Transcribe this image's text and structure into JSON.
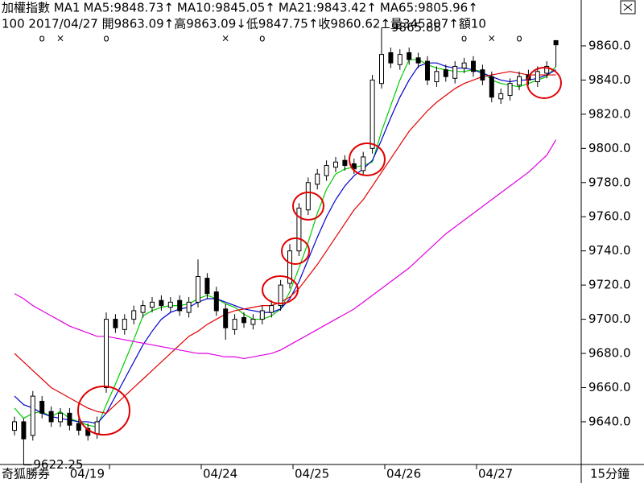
{
  "chart_data": {
    "type": "candlestick",
    "header": [
      {
        "text": "加權指數 MA1",
        "color": "#000000"
      },
      {
        "text": "MA5:9848.73↑",
        "color": "#00bb00"
      },
      {
        "text": "MA10:9845.05↑",
        "color": "#0000ff"
      },
      {
        "text": "MA21:9843.42↑",
        "color": "#ff0000"
      },
      {
        "text": "MA65:9805.96↑",
        "color": "#ee00ee"
      }
    ],
    "info": "100 2017/04/27 開9863.09↑高9863.09↓低9847.75↑收9860.62↑量345307↑額10",
    "brand": "奇狐勝券",
    "interval": "15分鐘",
    "categories": [
      null,
      null,
      null,
      null,
      null,
      null,
      null,
      null,
      null,
      null,
      "04/19",
      null,
      null,
      null,
      null,
      null,
      null,
      null,
      null,
      null,
      "04/24",
      null,
      null,
      null,
      null,
      null,
      null,
      null,
      null,
      null,
      "04/25",
      null,
      null,
      null,
      null,
      null,
      null,
      null,
      null,
      null,
      "04/26",
      null,
      null,
      null,
      null,
      null,
      null,
      null,
      null,
      null,
      "04/27",
      null,
      null,
      null,
      null,
      null,
      null,
      null,
      null,
      null
    ],
    "signals": [
      null,
      null,
      null,
      "o",
      null,
      "×",
      null,
      null,
      null,
      null,
      "o",
      null,
      null,
      null,
      null,
      null,
      null,
      null,
      null,
      null,
      null,
      null,
      null,
      "×",
      null,
      null,
      null,
      "o",
      null,
      null,
      null,
      null,
      null,
      null,
      null,
      null,
      null,
      null,
      null,
      null,
      null,
      null,
      null,
      null,
      null,
      null,
      null,
      null,
      null,
      "o",
      null,
      null,
      "×",
      null,
      null,
      "o",
      null,
      null,
      null,
      null
    ],
    "open": [
      9635,
      9640,
      9632,
      9652,
      9646,
      9640,
      9645,
      9639,
      9636,
      9633,
      9660,
      9700,
      9694,
      9700,
      9704,
      9707,
      9711,
      9707,
      9711,
      9704,
      9710,
      9724,
      9716,
      9706,
      9694,
      9701,
      9697,
      9700,
      9704,
      9708,
      9721,
      9740,
      9764,
      9779,
      9784,
      9789,
      9793,
      9791,
      9787,
      9800,
      9838,
      9856,
      9849,
      9856,
      9853,
      9851,
      9839,
      9846,
      9841,
      9847,
      9851,
      9846,
      9842,
      9829,
      9831,
      9837,
      9843,
      9839,
      9844,
      9863.09
    ],
    "high": [
      9643,
      9642,
      9658,
      9655,
      9649,
      9648,
      9648,
      9642,
      9639,
      9643,
      9704,
      9703,
      9703,
      9708,
      9711,
      9713,
      9714,
      9713,
      9714,
      9713,
      9735,
      9727,
      9719,
      9709,
      9703,
      9704,
      9703,
      9708,
      9711,
      9723,
      9744,
      9768,
      9783,
      9788,
      9793,
      9795,
      9796,
      9794,
      9798,
      9843,
      9865.88,
      9859,
      9858,
      9859,
      9856,
      9854,
      9848,
      9849,
      9851,
      9853,
      9854,
      9849,
      9845,
      9835,
      9841,
      9845,
      9846,
      9848,
      9851,
      9863.09
    ],
    "low": [
      9632,
      9622.25,
      9629,
      9642,
      9637,
      9637,
      9635,
      9632,
      9629,
      9630,
      9657,
      9692,
      9691,
      9697,
      9701,
      9704,
      9705,
      9704,
      9702,
      9701,
      9707,
      9712,
      9702,
      9688,
      9691,
      9695,
      9694,
      9697,
      9701,
      9705,
      9718,
      9737,
      9761,
      9776,
      9781,
      9786,
      9787,
      9785,
      9784,
      9797,
      9835,
      9847,
      9846,
      9849,
      9847,
      9837,
      9836,
      9839,
      9838,
      9844,
      9842,
      9837,
      9827,
      9826,
      9828,
      9834,
      9837,
      9836,
      9841,
      9847.75
    ],
    "close": [
      9640,
      9630,
      9655,
      9645,
      9640,
      9645,
      9638,
      9635,
      9632,
      9640,
      9700,
      9695,
      9700,
      9705,
      9708,
      9710,
      9708,
      9710,
      9705,
      9710,
      9725,
      9715,
      9705,
      9695,
      9700,
      9698,
      9700,
      9705,
      9708,
      9720,
      9740,
      9765,
      9780,
      9785,
      9790,
      9792,
      9790,
      9788,
      9795,
      9840,
      9855,
      9850,
      9855,
      9852,
      9850,
      9840,
      9845,
      9842,
      9848,
      9850,
      9845,
      9840,
      9830,
      9832,
      9838,
      9842,
      9840,
      9845,
      9848,
      9860.62
    ],
    "series": [
      {
        "name": "MA5",
        "color": "#00cc00",
        "values": [
          9648,
          9642,
          9645,
          9646,
          9643,
          9646,
          9642,
          9640,
          9638,
          9637,
          9650,
          9662,
          9675,
          9688,
          9702,
          9705,
          9707,
          9708,
          9708,
          9709,
          9712,
          9714,
          9712,
          9709,
          9707,
          9703,
          9700,
          9700,
          9702,
          9706,
          9716,
          9730,
          9745,
          9762,
          9776,
          9785,
          9788,
          9789,
          9790,
          9792,
          9810,
          9825,
          9840,
          9852,
          9852,
          9849,
          9847,
          9846,
          9845,
          9845,
          9846,
          9845,
          9840,
          9838,
          9837,
          9836,
          9838,
          9840,
          9842,
          9848
        ]
      },
      {
        "name": "MA10",
        "color": "#0000cc",
        "values": [
          9655,
          9650,
          9648,
          9645,
          9643,
          9642,
          9641,
          9640,
          9640,
          9639,
          9645,
          9655,
          9665,
          9675,
          9685,
          9693,
          9700,
          9704,
          9706,
          9707,
          9710,
          9712,
          9712,
          9710,
          9708,
          9706,
          9705,
          9704,
          9704,
          9706,
          9712,
          9722,
          9735,
          9748,
          9760,
          9770,
          9778,
          9784,
          9788,
          9793,
          9805,
          9818,
          9830,
          9840,
          9848,
          9850,
          9850,
          9848,
          9847,
          9847,
          9846,
          9844,
          9842,
          9840,
          9839,
          9840,
          9840,
          9841,
          9843,
          9846
        ]
      },
      {
        "name": "MA21",
        "color": "#e00000",
        "values": [
          9680,
          9675,
          9670,
          9665,
          9660,
          9657,
          9654,
          9651,
          9648,
          9646,
          9645,
          9650,
          9655,
          9660,
          9665,
          9670,
          9675,
          9680,
          9685,
          9690,
          9693,
          9697,
          9700,
          9703,
          9705,
          9706,
          9707,
          9708,
          9708,
          9710,
          9713,
          9718,
          9725,
          9732,
          9740,
          9748,
          9756,
          9764,
          9770,
          9778,
          9786,
          9794,
          9802,
          9810,
          9816,
          9822,
          9827,
          9831,
          9835,
          9838,
          9840,
          9842,
          9843,
          9844,
          9845,
          9844,
          9843,
          9843,
          9843,
          9843
        ]
      },
      {
        "name": "MA65",
        "color": "#e000e0",
        "values": [
          9715,
          9712,
          9708,
          9705,
          9702,
          9699,
          9696,
          9694,
          9692,
          9690,
          9690,
          9689,
          9688,
          9687,
          9686,
          9685,
          9684,
          9683,
          9682,
          9681,
          9680,
          9680,
          9679,
          9678,
          9678,
          9677,
          9678,
          9679,
          9680,
          9682,
          9685,
          9688,
          9691,
          9694,
          9697,
          9700,
          9703,
          9706,
          9710,
          9714,
          9718,
          9722,
          9726,
          9730,
          9735,
          9740,
          9745,
          9750,
          9754,
          9758,
          9762,
          9766,
          9770,
          9774,
          9778,
          9782,
          9786,
          9791,
          9796,
          9805
        ]
      }
    ],
    "annotations": [
      {
        "label": "9622.25",
        "value": 9622.25
      },
      {
        "label": "9865.88",
        "value": 9865.88
      }
    ],
    "ylim": [
      9615,
      9868
    ],
    "yticks": [
      {
        "value": 9640,
        "label": "9640.0"
      },
      {
        "value": 9660,
        "label": "9660.0"
      },
      {
        "value": 9680,
        "label": "9680.0"
      },
      {
        "value": 9700,
        "label": "9700.0"
      },
      {
        "value": 9720,
        "label": "9720.0"
      },
      {
        "value": 9740,
        "label": "9740.0"
      },
      {
        "value": 9760,
        "label": "9760.0"
      },
      {
        "value": 9780,
        "label": "9780.0"
      },
      {
        "value": 9800,
        "label": "9800.0"
      },
      {
        "value": 9820,
        "label": "9820.0"
      },
      {
        "value": 9840,
        "label": "9840.0"
      },
      {
        "value": 9860,
        "label": "9860.0"
      }
    ]
  }
}
